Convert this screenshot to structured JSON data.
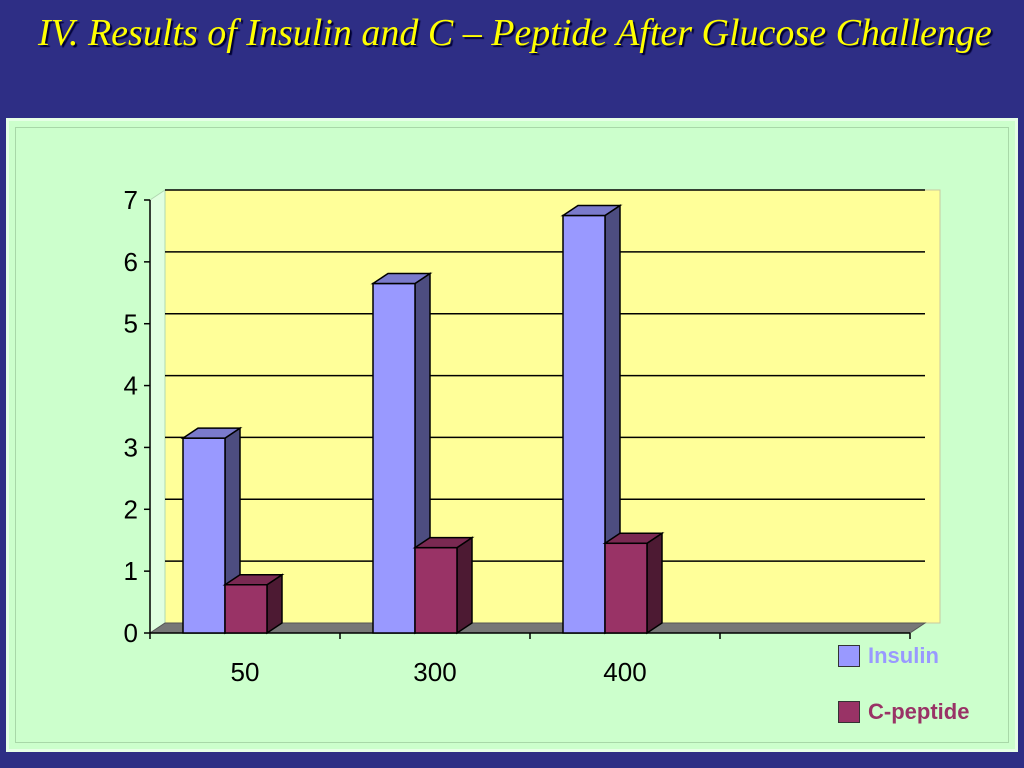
{
  "slide": {
    "title": "IV. Results of Insulin and C – Peptide After Glucose Challenge"
  },
  "colors": {
    "background": "#2e2e85",
    "title": "#ffff00",
    "panel": "#ccffcc",
    "plot_area": "#ffff99",
    "insulin": "#9999ff",
    "c_peptide": "#993366",
    "legend_insulin_text": "#9999ff",
    "legend_cpeptide_text": "#993366"
  },
  "chart_data": {
    "type": "bar",
    "style": "3d-column",
    "categories": [
      "50",
      "300",
      "400",
      ""
    ],
    "series": [
      {
        "name": "Insulin",
        "values": [
          3.15,
          5.65,
          6.75,
          null
        ]
      },
      {
        "name": "C-peptide",
        "values": [
          0.78,
          1.38,
          1.45,
          null
        ]
      }
    ],
    "ylim": [
      0,
      7
    ],
    "yticks": [
      "0",
      "1",
      "2",
      "3",
      "4",
      "5",
      "6",
      "7"
    ],
    "grid": true,
    "legend_position": "bottom-right",
    "title": "",
    "xlabel": "",
    "ylabel": ""
  }
}
